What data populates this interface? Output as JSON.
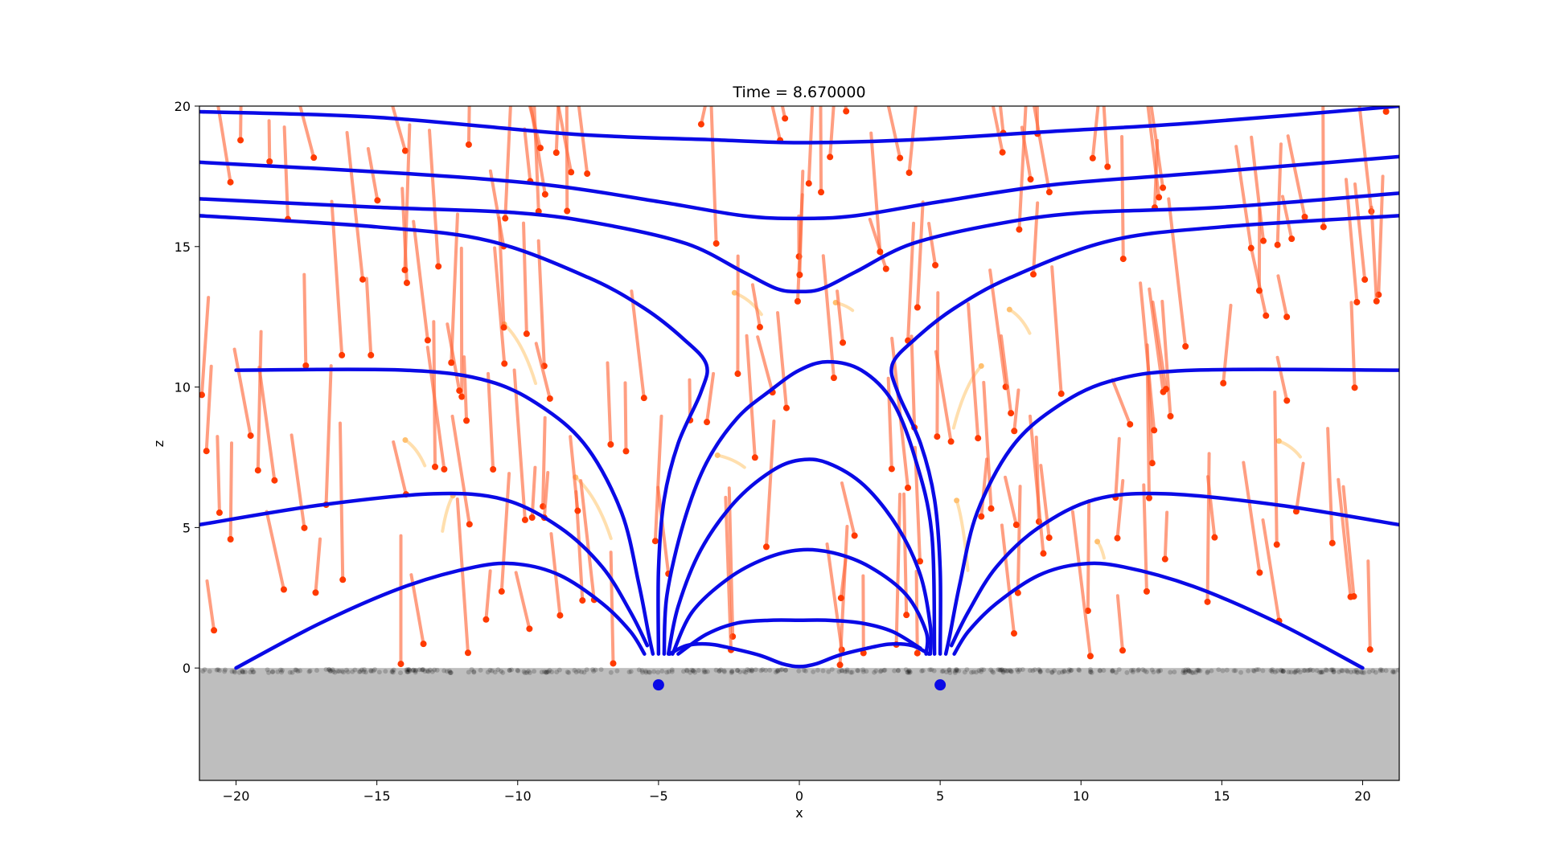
{
  "chart_data": {
    "type": "line",
    "title": "Time = 8.670000",
    "xlabel": "x",
    "ylabel": "z",
    "xlim": [
      -21.3,
      21.3
    ],
    "ylim": [
      -4,
      20
    ],
    "grid": false,
    "x_ticks": [
      -20,
      -15,
      -10,
      -5,
      0,
      5,
      10,
      15,
      20
    ],
    "y_ticks": [
      0,
      5,
      10,
      15,
      20
    ],
    "x_tick_labels": [
      "−20",
      "−15",
      "−10",
      "−5",
      "0",
      "5",
      "10",
      "15",
      "20"
    ],
    "y_tick_labels": [
      "0",
      "5",
      "10",
      "15",
      "20"
    ],
    "colors": {
      "field_lines": "#0a0ae6",
      "sources": "#0a0ae6",
      "trails": "#ff6a3d",
      "trail_heads": "#ff3a00",
      "faded_trails": "#ffd9a0",
      "ground": "#bebebe",
      "deposited": "#000000"
    },
    "ground": {
      "top_z": 0,
      "bottom_z": -4
    },
    "sources": [
      {
        "x": -5,
        "z": -0.6
      },
      {
        "x": 5,
        "z": -0.6
      }
    ],
    "field_lines": [
      [
        [
          -20.0,
          10.6
        ],
        [
          -14,
          10.6
        ],
        [
          -11,
          10.2
        ],
        [
          -9,
          9.2
        ],
        [
          -7.5,
          7.8
        ],
        [
          -6.3,
          5.5
        ],
        [
          -5.7,
          3.0
        ],
        [
          -5.35,
          1.2
        ],
        [
          -5.2,
          0.5
        ]
      ],
      [
        [
          -21.3,
          5.1
        ],
        [
          -17,
          5.8
        ],
        [
          -13,
          6.2
        ],
        [
          -10.5,
          6.0
        ],
        [
          -8.5,
          5.0
        ],
        [
          -7.0,
          3.6
        ],
        [
          -6.0,
          2.0
        ],
        [
          -5.4,
          0.8
        ]
      ],
      [
        [
          -20.0,
          0.0
        ],
        [
          -17,
          1.6
        ],
        [
          -14,
          2.9
        ],
        [
          -11.5,
          3.6
        ],
        [
          -10,
          3.7
        ],
        [
          -8.5,
          3.3
        ],
        [
          -7,
          2.3
        ],
        [
          -6,
          1.3
        ],
        [
          -5.5,
          0.5
        ]
      ],
      [
        [
          -21.3,
          16.1
        ],
        [
          -15,
          15.7
        ],
        [
          -11,
          15.2
        ],
        [
          -7.5,
          13.9
        ],
        [
          -5.5,
          12.8
        ],
        [
          -4.1,
          11.7
        ],
        [
          -3.3,
          10.8
        ],
        [
          -3.5,
          9.8
        ],
        [
          -4.3,
          8.0
        ],
        [
          -4.8,
          6.0
        ],
        [
          -5.0,
          3.5
        ],
        [
          -5.0,
          0.5
        ]
      ],
      [
        [
          -21.3,
          16.7
        ],
        [
          -15,
          16.4
        ],
        [
          -10,
          16.2
        ],
        [
          -7,
          15.8
        ],
        [
          -4,
          15.1
        ],
        [
          -2,
          14.1
        ],
        [
          -0.8,
          13.5
        ],
        [
          0,
          13.4
        ],
        [
          0.8,
          13.5
        ],
        [
          2,
          14.1
        ],
        [
          4,
          15.1
        ],
        [
          7,
          15.8
        ],
        [
          10,
          16.2
        ],
        [
          15,
          16.4
        ],
        [
          21.3,
          16.9
        ]
      ],
      [
        [
          -21.3,
          18.0
        ],
        [
          -14,
          17.6
        ],
        [
          -9,
          17.2
        ],
        [
          -5,
          16.6
        ],
        [
          -2,
          16.1
        ],
        [
          0,
          16.0
        ],
        [
          2,
          16.1
        ],
        [
          5,
          16.6
        ],
        [
          9,
          17.2
        ],
        [
          14,
          17.6
        ],
        [
          21.3,
          18.2
        ]
      ],
      [
        [
          -21.3,
          19.8
        ],
        [
          -15,
          19.6
        ],
        [
          -8,
          19.0
        ],
        [
          -3,
          18.8
        ],
        [
          0,
          18.7
        ],
        [
          4,
          18.8
        ],
        [
          9,
          19.1
        ],
        [
          14,
          19.4
        ],
        [
          21.3,
          20.0
        ]
      ],
      [
        [
          -4.8,
          0.5
        ],
        [
          -4.7,
          2.6
        ],
        [
          -4.1,
          5.2
        ],
        [
          -3.3,
          7.3
        ],
        [
          -2.2,
          8.9
        ],
        [
          -1.0,
          9.9
        ],
        [
          0,
          10.6
        ],
        [
          1.0,
          10.9
        ],
        [
          2.2,
          10.6
        ],
        [
          3.3,
          9.5
        ],
        [
          4.1,
          7.5
        ],
        [
          4.7,
          4.8
        ],
        [
          4.8,
          0.5
        ]
      ],
      [
        [
          -4.65,
          0.5
        ],
        [
          -4.3,
          2.2
        ],
        [
          -3.5,
          4.2
        ],
        [
          -2.3,
          5.9
        ],
        [
          -1.0,
          7.0
        ],
        [
          0,
          7.4
        ],
        [
          1.0,
          7.3
        ],
        [
          2.3,
          6.5
        ],
        [
          3.5,
          5.0
        ],
        [
          4.3,
          3.3
        ],
        [
          4.65,
          1.5
        ],
        [
          4.65,
          0.5
        ]
      ],
      [
        [
          -4.5,
          0.5
        ],
        [
          -3.8,
          2.0
        ],
        [
          -2.5,
          3.2
        ],
        [
          -1.2,
          3.9
        ],
        [
          0,
          4.2
        ],
        [
          1.2,
          4.1
        ],
        [
          2.5,
          3.6
        ],
        [
          3.8,
          2.6
        ],
        [
          4.5,
          1.3
        ],
        [
          4.5,
          0.5
        ]
      ],
      [
        [
          -4.3,
          0.5
        ],
        [
          -3.3,
          1.2
        ],
        [
          -2.2,
          1.6
        ],
        [
          -1,
          1.7
        ],
        [
          0,
          1.7
        ],
        [
          1,
          1.7
        ],
        [
          2.2,
          1.6
        ],
        [
          3.3,
          1.3
        ],
        [
          4.3,
          0.7
        ]
      ],
      [
        [
          -4.6,
          0.5
        ],
        [
          -4.0,
          0.8
        ],
        [
          -3.2,
          0.85
        ],
        [
          -2.4,
          0.7
        ],
        [
          -1.4,
          0.45
        ],
        [
          -0.6,
          0.15
        ],
        [
          0,
          0.05
        ],
        [
          0.6,
          0.15
        ],
        [
          1.4,
          0.45
        ],
        [
          2.4,
          0.7
        ],
        [
          3.2,
          0.85
        ],
        [
          4.0,
          0.8
        ],
        [
          4.6,
          0.5
        ]
      ],
      [
        [
          5.0,
          0.5
        ],
        [
          5.0,
          3.5
        ],
        [
          4.8,
          6.0
        ],
        [
          4.3,
          8.0
        ],
        [
          3.5,
          9.8
        ],
        [
          3.3,
          10.8
        ],
        [
          4.1,
          11.7
        ],
        [
          5.5,
          12.8
        ],
        [
          7.5,
          13.9
        ],
        [
          11,
          15.2
        ],
        [
          15,
          15.7
        ],
        [
          21.3,
          16.1
        ]
      ],
      [
        [
          5.2,
          0.5
        ],
        [
          5.35,
          1.2
        ],
        [
          5.7,
          3.0
        ],
        [
          6.3,
          5.5
        ],
        [
          7.5,
          7.8
        ],
        [
          9,
          9.2
        ],
        [
          11,
          10.2
        ],
        [
          14,
          10.6
        ],
        [
          21.3,
          10.6
        ]
      ],
      [
        [
          5.4,
          0.8
        ],
        [
          6.0,
          2.0
        ],
        [
          7.0,
          3.6
        ],
        [
          8.5,
          5.0
        ],
        [
          10.5,
          6.0
        ],
        [
          13,
          6.2
        ],
        [
          17,
          5.8
        ],
        [
          21.3,
          5.1
        ]
      ],
      [
        [
          5.5,
          0.5
        ],
        [
          6,
          1.3
        ],
        [
          7,
          2.3
        ],
        [
          8.5,
          3.3
        ],
        [
          10,
          3.7
        ],
        [
          11.5,
          3.6
        ],
        [
          14,
          2.9
        ],
        [
          17,
          1.6
        ],
        [
          20.0,
          0.0
        ]
      ]
    ],
    "particle_count": 430,
    "trail_count": 190,
    "faded_trail_count": 12
  }
}
